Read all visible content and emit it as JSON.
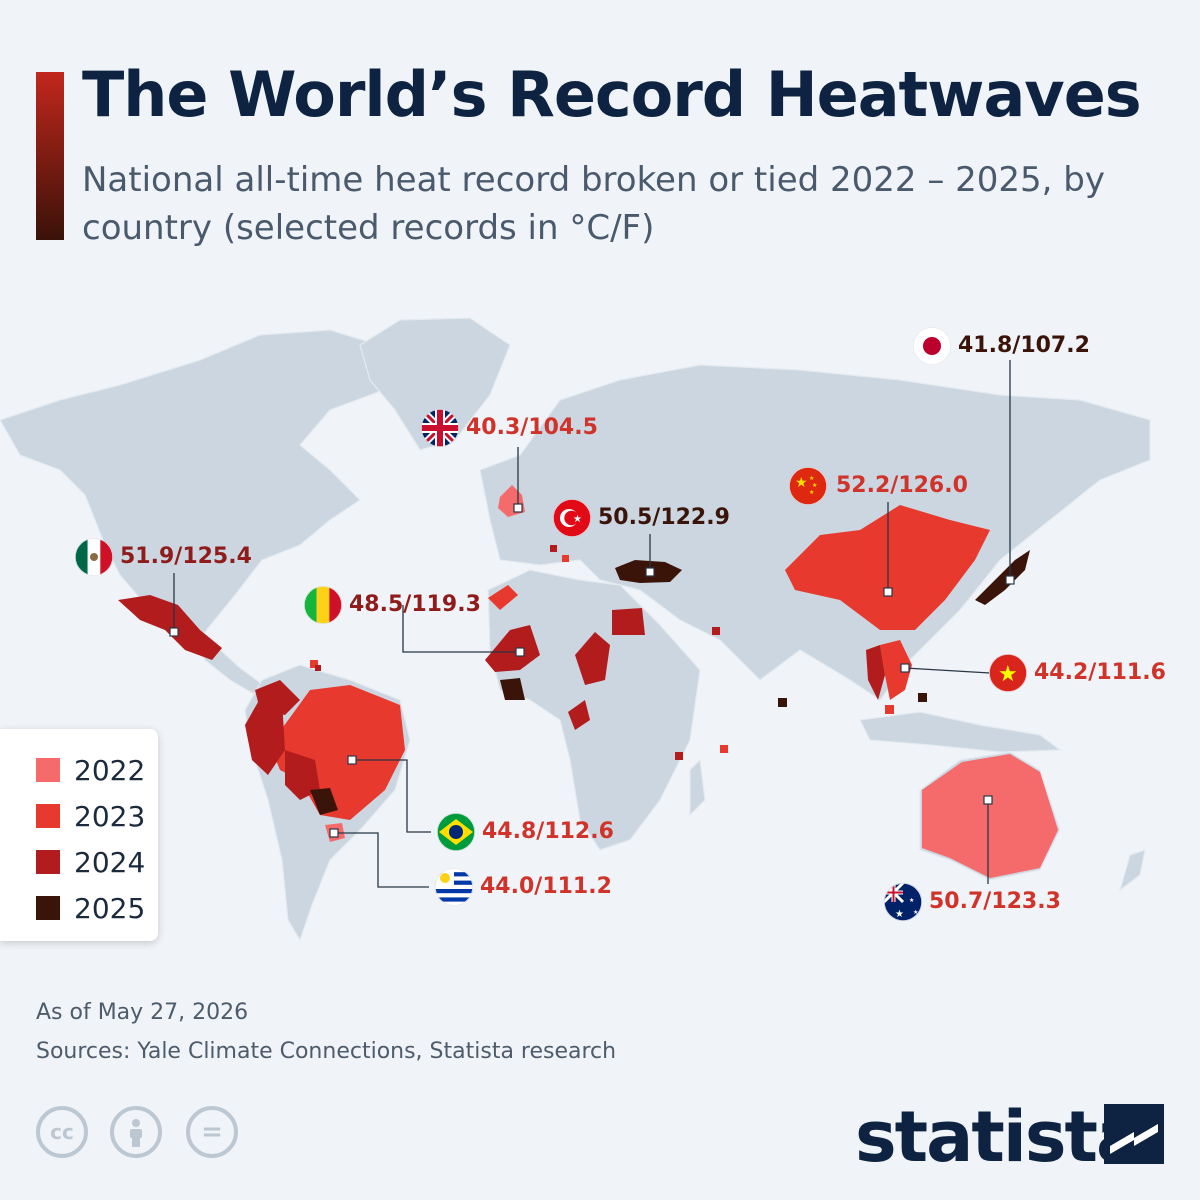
{
  "header": {
    "title": "The World’s Record Heatwaves",
    "subtitle": "National all-time heat record broken or tied 2022 – 2025, by country (selected records in °C/F)"
  },
  "colors": {
    "2022": "#f56a6a",
    "2023": "#e8392e",
    "2024": "#b21c1c",
    "2025": "#3a1409",
    "land": "#cbd6e0",
    "title": "#0d2341"
  },
  "legend": [
    {
      "label": "2022",
      "year": "2022"
    },
    {
      "label": "2023",
      "year": "2023"
    },
    {
      "label": "2024",
      "year": "2024"
    },
    {
      "label": "2025",
      "year": "2025"
    }
  ],
  "records": [
    {
      "country": "Japan",
      "flag": "japan-flag-icon",
      "value": "41.8/107.2",
      "year": "2025"
    },
    {
      "country": "United Kingdom",
      "flag": "uk-flag-icon",
      "value": "40.3/104.5",
      "year": "2022"
    },
    {
      "country": "China",
      "flag": "china-flag-icon",
      "value": "52.2/126.0",
      "year": "2023"
    },
    {
      "country": "Turkey",
      "flag": "turkey-flag-icon",
      "value": "50.5/122.9",
      "year": "2025"
    },
    {
      "country": "Mexico",
      "flag": "mexico-flag-icon",
      "value": "51.9/125.4",
      "year": "2024"
    },
    {
      "country": "Mali",
      "flag": "mali-flag-icon",
      "value": "48.5/119.3",
      "year": "2024"
    },
    {
      "country": "Vietnam",
      "flag": "vietnam-flag-icon",
      "value": "44.2/111.6",
      "year": "2023"
    },
    {
      "country": "Brazil",
      "flag": "brazil-flag-icon",
      "value": "44.8/112.6",
      "year": "2023"
    },
    {
      "country": "Uruguay",
      "flag": "uruguay-flag-icon",
      "value": "44.0/111.2",
      "year": "2023"
    },
    {
      "country": "Australia",
      "flag": "australia-flag-icon",
      "value": "50.7/123.3",
      "year": "2022"
    }
  ],
  "footer": {
    "as_of": "As of May 27, 2026",
    "sources": "Sources: Yale Climate Connections, Statista research",
    "license_icons": [
      "creative-commons-icon",
      "attribution-icon",
      "no-derivatives-icon"
    ],
    "brand": "statista",
    "brand_icon": "statista-logo-icon"
  }
}
